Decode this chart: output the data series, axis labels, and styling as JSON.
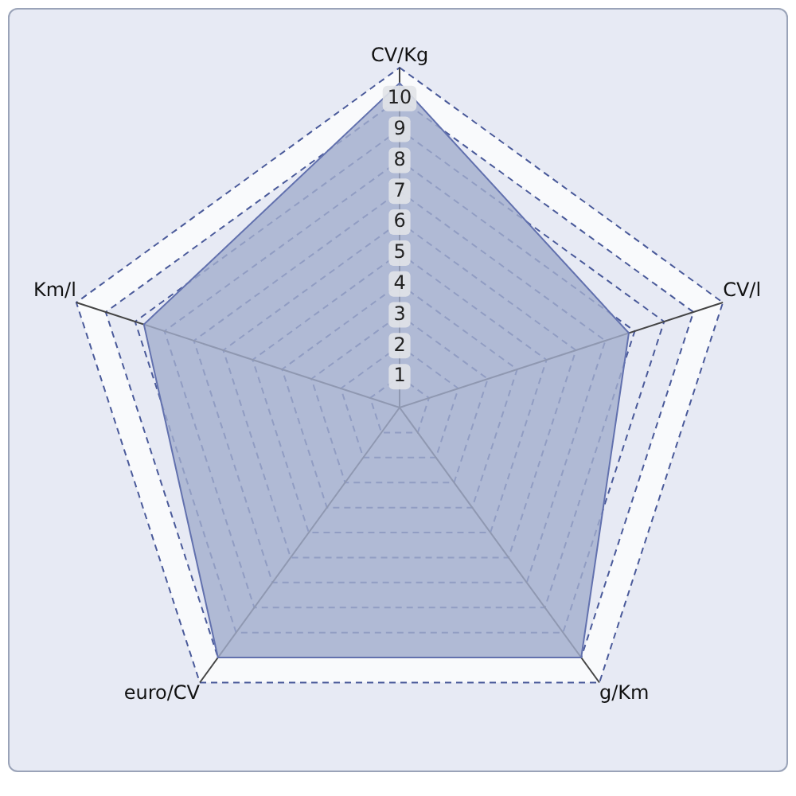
{
  "chart_data": {
    "type": "radar",
    "categories": [
      "CV/Kg",
      "CV/l",
      "g/Km",
      "euro/CV",
      "Km/l"
    ],
    "series": [
      {
        "color": "#a3aecd",
        "values": [
          10.5,
          7.8,
          10,
          10,
          8.7
        ]
      }
    ],
    "ylim": [
      0,
      11
    ],
    "yticks": [
      1,
      2,
      3,
      4,
      5,
      6,
      7,
      8,
      9,
      10
    ],
    "grid": true,
    "legend": false,
    "marker": "none",
    "line_style": "solid"
  }
}
